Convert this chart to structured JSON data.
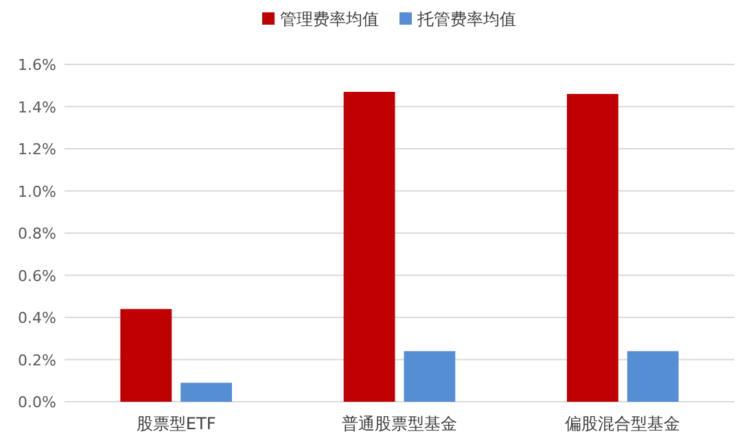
{
  "chart_data": {
    "type": "bar",
    "categories": [
      "股票型ETF",
      "普通股票型基金",
      "偏股混合型基金"
    ],
    "series": [
      {
        "name": "管理费率均值",
        "color": "#c00000",
        "values": [
          0.44,
          1.47,
          1.46
        ]
      },
      {
        "name": "托管费率均值",
        "color": "#558ed5",
        "values": [
          0.09,
          0.24,
          0.24
        ]
      }
    ],
    "ylim": [
      0,
      1.6
    ],
    "yticks": [
      {
        "value": 0,
        "label": "0.0%"
      },
      {
        "value": 0.2,
        "label": "0.2%"
      },
      {
        "value": 0.4,
        "label": "0.4%"
      },
      {
        "value": 0.6,
        "label": "0.6%"
      },
      {
        "value": 0.8,
        "label": "0.8%"
      },
      {
        "value": 1.0,
        "label": "1.0%"
      },
      {
        "value": 1.2,
        "label": "1.2%"
      },
      {
        "value": 1.4,
        "label": "1.4%"
      },
      {
        "value": 1.6,
        "label": "1.6%"
      }
    ],
    "grid": "y",
    "legend": "top"
  }
}
